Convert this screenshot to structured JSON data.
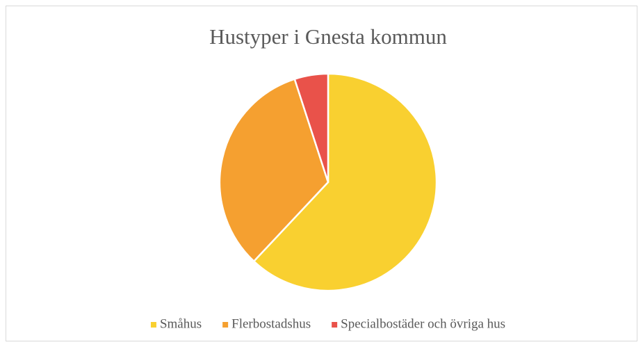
{
  "chart_data": {
    "type": "pie",
    "title": "Hustyper i Gnesta kommun",
    "categories": [
      "Småhus",
      "Flerbostadshus",
      "Specialbostäder och övriga hus"
    ],
    "values": [
      62,
      33,
      5
    ],
    "colors": [
      "#f9d030",
      "#f5a030",
      "#e9524a"
    ],
    "legend": "bottom"
  }
}
